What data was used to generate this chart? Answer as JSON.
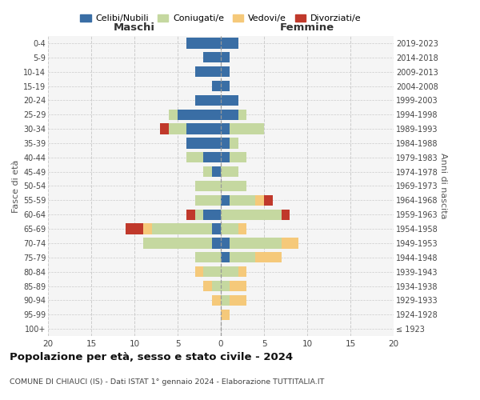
{
  "age_groups": [
    "100+",
    "95-99",
    "90-94",
    "85-89",
    "80-84",
    "75-79",
    "70-74",
    "65-69",
    "60-64",
    "55-59",
    "50-54",
    "45-49",
    "40-44",
    "35-39",
    "30-34",
    "25-29",
    "20-24",
    "15-19",
    "10-14",
    "5-9",
    "0-4"
  ],
  "birth_years": [
    "≤ 1923",
    "1924-1928",
    "1929-1933",
    "1934-1938",
    "1939-1943",
    "1944-1948",
    "1949-1953",
    "1954-1958",
    "1959-1963",
    "1964-1968",
    "1969-1973",
    "1974-1978",
    "1979-1983",
    "1984-1988",
    "1989-1993",
    "1994-1998",
    "1999-2003",
    "2004-2008",
    "2009-2013",
    "2014-2018",
    "2019-2023"
  ],
  "maschi": {
    "celibi": [
      0,
      0,
      0,
      0,
      0,
      0,
      1,
      1,
      2,
      0,
      0,
      1,
      2,
      4,
      4,
      5,
      3,
      1,
      3,
      2,
      4
    ],
    "coniugati": [
      0,
      0,
      0,
      1,
      2,
      3,
      8,
      7,
      1,
      3,
      3,
      1,
      2,
      0,
      2,
      1,
      0,
      0,
      0,
      0,
      0
    ],
    "vedovi": [
      0,
      0,
      1,
      1,
      1,
      0,
      0,
      1,
      0,
      0,
      0,
      0,
      0,
      0,
      0,
      0,
      0,
      0,
      0,
      0,
      0
    ],
    "divorziati": [
      0,
      0,
      0,
      0,
      0,
      0,
      0,
      2,
      1,
      0,
      0,
      0,
      0,
      0,
      1,
      0,
      0,
      0,
      0,
      0,
      0
    ]
  },
  "femmine": {
    "nubili": [
      0,
      0,
      0,
      0,
      0,
      1,
      1,
      0,
      0,
      1,
      0,
      0,
      1,
      1,
      1,
      2,
      2,
      1,
      1,
      1,
      2
    ],
    "coniugate": [
      0,
      0,
      1,
      1,
      2,
      3,
      6,
      2,
      7,
      3,
      3,
      2,
      2,
      1,
      4,
      1,
      0,
      0,
      0,
      0,
      0
    ],
    "vedove": [
      0,
      1,
      2,
      2,
      1,
      3,
      2,
      1,
      0,
      1,
      0,
      0,
      0,
      0,
      0,
      0,
      0,
      0,
      0,
      0,
      0
    ],
    "divorziate": [
      0,
      0,
      0,
      0,
      0,
      0,
      0,
      0,
      1,
      1,
      0,
      0,
      0,
      0,
      0,
      0,
      0,
      0,
      0,
      0,
      0
    ]
  },
  "colors": {
    "celibi": "#3A6EA5",
    "coniugati": "#C5D8A0",
    "vedovi": "#F5C97A",
    "divorziati": "#C0392B"
  },
  "title": "Popolazione per età, sesso e stato civile - 2024",
  "subtitle": "COMUNE DI CHIAUCI (IS) - Dati ISTAT 1° gennaio 2024 - Elaborazione TUTTITALIA.IT",
  "xlabel_left": "Maschi",
  "xlabel_right": "Femmine",
  "ylabel_left": "Fasce di età",
  "ylabel_right": "Anni di nascita",
  "xlim": 20,
  "bg_color": "#ffffff",
  "plot_bg_color": "#F5F5F5",
  "grid_color": "#cccccc",
  "legend_labels": [
    "Celibi/Nubili",
    "Coniugati/e",
    "Vedovi/e",
    "Divorziati/e"
  ]
}
